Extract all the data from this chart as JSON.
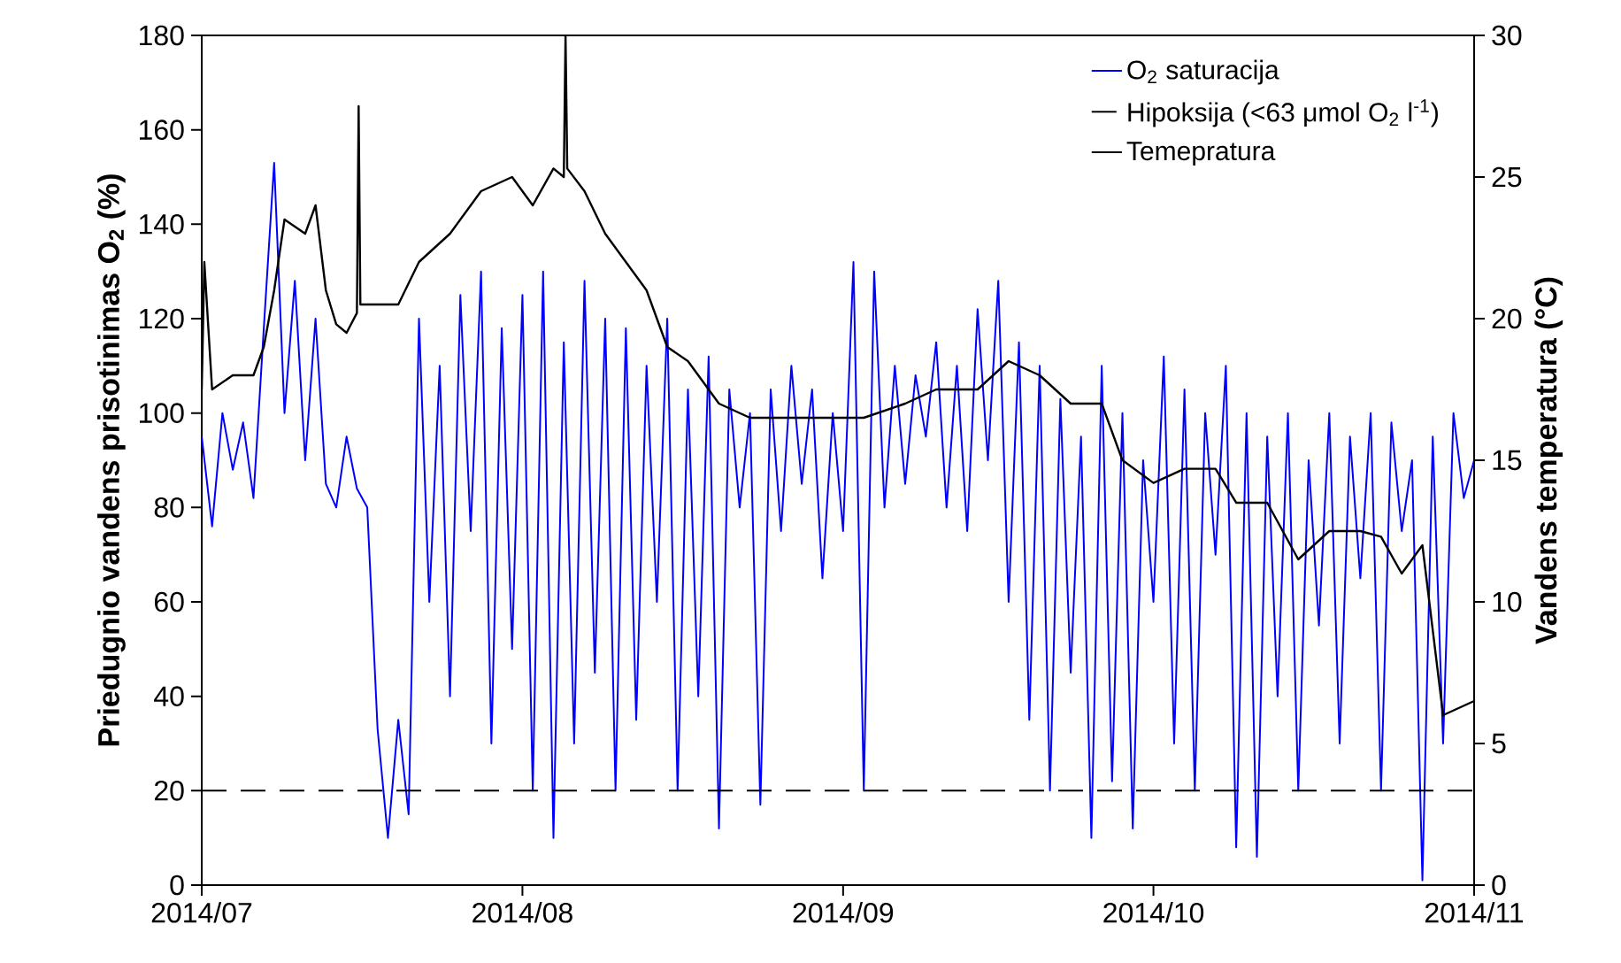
{
  "chart_data": {
    "type": "line",
    "ylabel": "Priedugnio vandens prisotinimas O$_{2}$ (%)",
    "y2label": "Vandens temperatura (°C)",
    "xlim": [
      "2014-07-01",
      "2014-11-01"
    ],
    "xticks": [
      {
        "value": "2014-07-01",
        "label": "2014/07"
      },
      {
        "value": "2014-08-01",
        "label": "2014/08"
      },
      {
        "value": "2014-09-01",
        "label": "2014/09"
      },
      {
        "value": "2014-10-01",
        "label": "2014/10"
      },
      {
        "value": "2014-11-01",
        "label": "2014/11"
      }
    ],
    "ylim": [
      0,
      180
    ],
    "yticks": [
      0,
      20,
      40,
      60,
      80,
      100,
      120,
      140,
      160,
      180
    ],
    "y2lim": [
      0,
      30
    ],
    "y2ticks": [
      0,
      5,
      10,
      15,
      20,
      25,
      30
    ],
    "legend": "top right",
    "grid": false,
    "marker": "none",
    "ref_lines": [
      {
        "axis": "y",
        "value": 20,
        "label": "Hipoksija (<63 μmol O$_{2}$ l$^{-1}$)",
        "color": "#000000",
        "line_style": "dashed"
      }
    ],
    "series": [
      {
        "name": "O$_{2}$ saturacija",
        "color": "#0000ff",
        "axis": "y",
        "x": [
          "2014-07-01",
          "2014-07-02",
          "2014-07-03",
          "2014-07-04",
          "2014-07-05",
          "2014-07-06",
          "2014-07-07",
          "2014-07-08",
          "2014-07-09",
          "2014-07-10",
          "2014-07-11",
          "2014-07-12",
          "2014-07-13",
          "2014-07-14",
          "2014-07-15",
          "2014-07-16",
          "2014-07-17",
          "2014-07-18",
          "2014-07-19",
          "2014-07-20",
          "2014-07-21",
          "2014-07-22",
          "2014-07-23",
          "2014-07-24",
          "2014-07-25",
          "2014-07-26",
          "2014-07-27",
          "2014-07-28",
          "2014-07-29",
          "2014-07-30",
          "2014-07-31",
          "2014-08-01",
          "2014-08-02",
          "2014-08-03",
          "2014-08-04",
          "2014-08-05",
          "2014-08-06",
          "2014-08-07",
          "2014-08-08",
          "2014-08-09",
          "2014-08-10",
          "2014-08-11",
          "2014-08-12",
          "2014-08-13",
          "2014-08-14",
          "2014-08-15",
          "2014-08-16",
          "2014-08-17",
          "2014-08-18",
          "2014-08-19",
          "2014-08-20",
          "2014-08-21",
          "2014-08-22",
          "2014-08-23",
          "2014-08-24",
          "2014-08-25",
          "2014-08-26",
          "2014-08-27",
          "2014-08-28",
          "2014-08-29",
          "2014-08-30",
          "2014-08-31",
          "2014-09-01",
          "2014-09-02",
          "2014-09-03",
          "2014-09-04",
          "2014-09-05",
          "2014-09-06",
          "2014-09-07",
          "2014-09-08",
          "2014-09-09",
          "2014-09-10",
          "2014-09-11",
          "2014-09-12",
          "2014-09-13",
          "2014-09-14",
          "2014-09-15",
          "2014-09-16",
          "2014-09-17",
          "2014-09-18",
          "2014-09-19",
          "2014-09-20",
          "2014-09-21",
          "2014-09-22",
          "2014-09-23",
          "2014-09-24",
          "2014-09-25",
          "2014-09-26",
          "2014-09-27",
          "2014-09-28",
          "2014-09-29",
          "2014-09-30",
          "2014-10-01",
          "2014-10-02",
          "2014-10-03",
          "2014-10-04",
          "2014-10-05",
          "2014-10-06",
          "2014-10-07",
          "2014-10-08",
          "2014-10-09",
          "2014-10-10",
          "2014-10-11",
          "2014-10-12",
          "2014-10-13",
          "2014-10-14",
          "2014-10-15",
          "2014-10-16",
          "2014-10-17",
          "2014-10-18",
          "2014-10-19",
          "2014-10-20",
          "2014-10-21",
          "2014-10-22",
          "2014-10-23",
          "2014-10-24",
          "2014-10-25",
          "2014-10-26",
          "2014-10-27",
          "2014-10-28",
          "2014-10-29",
          "2014-10-30",
          "2014-10-31",
          "2014-11-01"
        ],
        "values": [
          95,
          76,
          100,
          88,
          98,
          82,
          118,
          153,
          100,
          128,
          90,
          120,
          85,
          80,
          95,
          84,
          80,
          33,
          10,
          35,
          15,
          120,
          60,
          110,
          40,
          125,
          75,
          130,
          30,
          118,
          50,
          125,
          20,
          130,
          10,
          115,
          30,
          128,
          45,
          120,
          20,
          118,
          35,
          110,
          60,
          120,
          20,
          105,
          40,
          112,
          12,
          105,
          80,
          100,
          17,
          105,
          75,
          110,
          85,
          105,
          65,
          100,
          75,
          132,
          20,
          130,
          80,
          110,
          85,
          108,
          95,
          115,
          80,
          110,
          75,
          122,
          90,
          128,
          60,
          115,
          35,
          110,
          20,
          103,
          45,
          95,
          10,
          110,
          22,
          100,
          12,
          90,
          60,
          112,
          30,
          105,
          20,
          100,
          70,
          110,
          8,
          100,
          6,
          95,
          40,
          100,
          20,
          90,
          55,
          100,
          30,
          95,
          65,
          100,
          20,
          98,
          75,
          90,
          1,
          95,
          30,
          100,
          82,
          90
        ]
      },
      {
        "name": "Temepratura",
        "color": "#000000",
        "axis": "y2",
        "x": [
          "2014-07-01",
          "2014-07-01T06:00",
          "2014-07-02",
          "2014-07-04",
          "2014-07-06",
          "2014-07-07",
          "2014-07-08",
          "2014-07-09",
          "2014-07-11",
          "2014-07-12",
          "2014-07-13",
          "2014-07-14",
          "2014-07-15",
          "2014-07-16",
          "2014-07-16T04:00",
          "2014-07-16T08:00",
          "2014-07-18",
          "2014-07-20",
          "2014-07-22",
          "2014-07-25",
          "2014-07-28",
          "2014-07-31",
          "2014-08-02",
          "2014-08-04",
          "2014-08-05",
          "2014-08-05T04:00",
          "2014-08-05T08:00",
          "2014-08-07",
          "2014-08-09",
          "2014-08-11",
          "2014-08-13",
          "2014-08-15",
          "2014-08-17",
          "2014-08-20",
          "2014-08-23",
          "2014-08-26",
          "2014-08-30",
          "2014-09-03",
          "2014-09-07",
          "2014-09-10",
          "2014-09-14",
          "2014-09-17",
          "2014-09-20",
          "2014-09-23",
          "2014-09-26",
          "2014-09-28",
          "2014-10-01",
          "2014-10-04",
          "2014-10-07",
          "2014-10-09",
          "2014-10-12",
          "2014-10-15",
          "2014-10-18",
          "2014-10-21",
          "2014-10-23",
          "2014-10-25",
          "2014-10-27",
          "2014-10-28",
          "2014-10-29",
          "2014-11-01"
        ],
        "values": [
          17.5,
          22,
          17.5,
          18,
          18,
          19,
          21,
          23.5,
          23,
          24,
          21,
          19.8,
          19.5,
          20.2,
          27.5,
          20.5,
          20.5,
          20.5,
          22,
          23,
          24.5,
          25,
          24,
          25.3,
          25,
          30,
          25.3,
          24.5,
          23,
          22,
          21,
          19,
          18.5,
          17,
          16.5,
          16.5,
          16.5,
          16.5,
          17,
          17.5,
          17.5,
          18.5,
          18,
          17,
          17,
          15,
          14.2,
          14.7,
          14.7,
          13.5,
          13.5,
          11.5,
          12.5,
          12.5,
          12.3,
          11,
          12,
          9,
          6,
          6.5
        ]
      }
    ]
  }
}
